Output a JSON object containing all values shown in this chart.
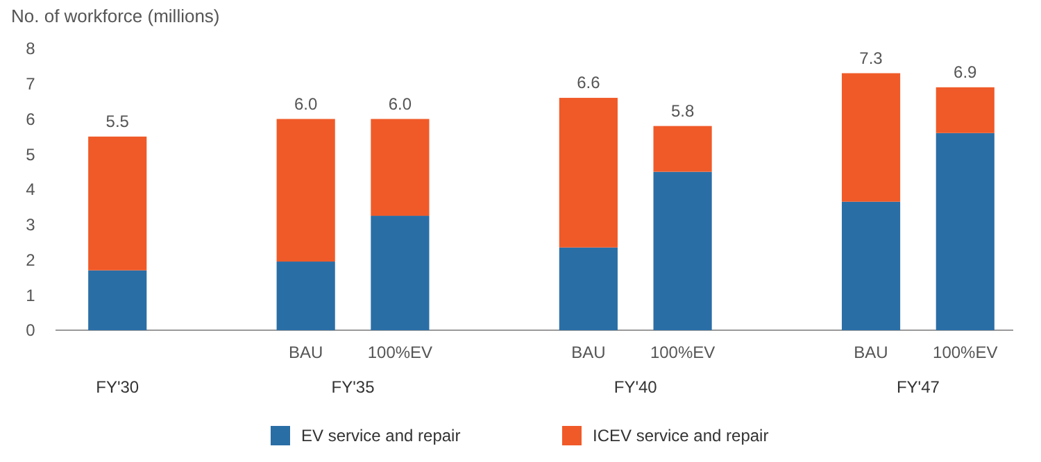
{
  "chart_data": {
    "type": "bar",
    "stacked": true,
    "ylabel": "No. of workforce (millions)",
    "categories": [
      null,
      null,
      "BAU",
      "100%EV",
      null,
      "BAU",
      "100%EV",
      null,
      "BAU",
      "100%EV"
    ],
    "series": [
      {
        "name": "EV service and repair",
        "color": "#2a6ea6",
        "values": [
          1.7,
          null,
          1.95,
          3.25,
          null,
          2.35,
          4.5,
          null,
          3.65,
          5.6
        ]
      },
      {
        "name": "ICEV service and repair",
        "color": "#f05a28",
        "values": [
          3.8,
          null,
          4.05,
          2.75,
          null,
          4.25,
          1.3,
          null,
          3.65,
          1.3
        ]
      }
    ],
    "totals": [
      "5.5",
      null,
      "6.0",
      "6.0",
      null,
      "6.6",
      "5.8",
      null,
      "7.3",
      "6.9"
    ],
    "annotations": [
      "FY'30",
      "FY'35",
      "FY'40",
      "FY'47"
    ],
    "ylim": [
      0,
      8
    ],
    "yticks": [
      0,
      1,
      2,
      3,
      4,
      5,
      6,
      7,
      8
    ],
    "legend": "bottom"
  }
}
